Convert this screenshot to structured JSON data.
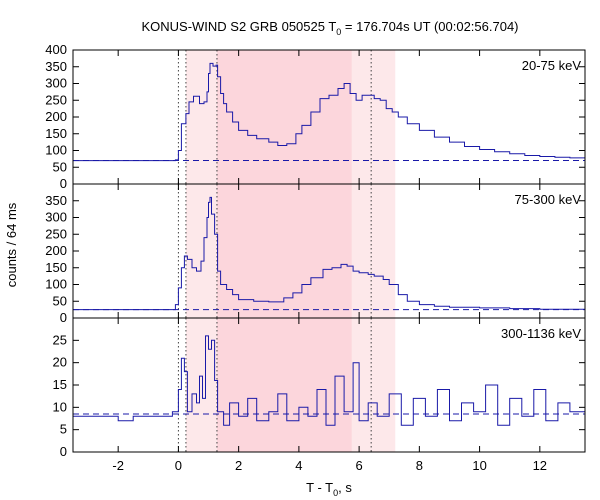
{
  "chart_data": {
    "type": "line",
    "title": {
      "main": "KONUS-WIND S2 GRB 050525 T",
      "sub": "0",
      "rest": " = 176.704s UT (00:02:56.704)"
    },
    "xlabel": {
      "main": "T - T",
      "sub": "0",
      "rest": ", s"
    },
    "ylabel": "counts / 64 ms",
    "xlim": [
      -3.5,
      13.5
    ],
    "x_ticks": [
      -2,
      0,
      2,
      4,
      6,
      8,
      10,
      12
    ],
    "vlines": [
      0.0,
      0.25,
      1.28,
      6.4
    ],
    "shaded": [
      {
        "range": [
          0.25,
          1.28
        ],
        "color": "#fde8ea"
      },
      {
        "range": [
          1.28,
          5.76
        ],
        "color": "#fcd6dc"
      },
      {
        "range": [
          5.76,
          7.2
        ],
        "color": "#fde8ea"
      }
    ],
    "panels": [
      {
        "band": "20-75 keV",
        "ylim": [
          0,
          400
        ],
        "y_ticks": [
          0,
          50,
          100,
          150,
          200,
          250,
          300,
          350,
          400
        ],
        "background": 70,
        "curve": [
          [
            -3.5,
            70
          ],
          [
            -0.4,
            70
          ],
          [
            -0.1,
            72
          ],
          [
            0.0,
            100
          ],
          [
            0.1,
            180
          ],
          [
            0.25,
            210
          ],
          [
            0.35,
            245
          ],
          [
            0.5,
            262
          ],
          [
            0.7,
            240
          ],
          [
            0.85,
            245
          ],
          [
            0.95,
            275
          ],
          [
            1.0,
            330
          ],
          [
            1.05,
            360
          ],
          [
            1.15,
            352
          ],
          [
            1.25,
            355
          ],
          [
            1.3,
            320
          ],
          [
            1.4,
            270
          ],
          [
            1.5,
            240
          ],
          [
            1.6,
            215
          ],
          [
            1.8,
            185
          ],
          [
            2.0,
            160
          ],
          [
            2.3,
            145
          ],
          [
            2.6,
            135
          ],
          [
            3.0,
            125
          ],
          [
            3.3,
            115
          ],
          [
            3.6,
            120
          ],
          [
            3.9,
            150
          ],
          [
            4.1,
            175
          ],
          [
            4.4,
            215
          ],
          [
            4.7,
            255
          ],
          [
            5.0,
            265
          ],
          [
            5.3,
            285
          ],
          [
            5.5,
            300
          ],
          [
            5.7,
            270
          ],
          [
            5.9,
            250
          ],
          [
            6.1,
            265
          ],
          [
            6.3,
            265
          ],
          [
            6.5,
            255
          ],
          [
            6.7,
            250
          ],
          [
            6.9,
            225
          ],
          [
            7.1,
            215
          ],
          [
            7.3,
            200
          ],
          [
            7.6,
            180
          ],
          [
            8.0,
            160
          ],
          [
            8.5,
            140
          ],
          [
            9.0,
            125
          ],
          [
            9.5,
            112
          ],
          [
            10.0,
            103
          ],
          [
            10.5,
            96
          ],
          [
            11.0,
            90
          ],
          [
            11.5,
            85
          ],
          [
            12.0,
            82
          ],
          [
            12.5,
            80
          ],
          [
            13.0,
            78
          ],
          [
            13.5,
            75
          ]
        ]
      },
      {
        "band": "75-300 keV",
        "ylim": [
          0,
          400
        ],
        "y_ticks": [
          0,
          50,
          100,
          150,
          200,
          250,
          300,
          350
        ],
        "background": 25,
        "curve": [
          [
            -3.5,
            25
          ],
          [
            -0.4,
            25
          ],
          [
            -0.1,
            40
          ],
          [
            0.0,
            90
          ],
          [
            0.1,
            150
          ],
          [
            0.2,
            185
          ],
          [
            0.3,
            175
          ],
          [
            0.45,
            150
          ],
          [
            0.6,
            140
          ],
          [
            0.75,
            170
          ],
          [
            0.85,
            240
          ],
          [
            0.95,
            300
          ],
          [
            1.0,
            345
          ],
          [
            1.05,
            360
          ],
          [
            1.1,
            310
          ],
          [
            1.2,
            250
          ],
          [
            1.3,
            140
          ],
          [
            1.4,
            100
          ],
          [
            1.6,
            85
          ],
          [
            1.8,
            70
          ],
          [
            2.0,
            55
          ],
          [
            2.5,
            50
          ],
          [
            3.0,
            48
          ],
          [
            3.5,
            60
          ],
          [
            3.8,
            75
          ],
          [
            4.1,
            100
          ],
          [
            4.4,
            120
          ],
          [
            4.8,
            145
          ],
          [
            5.1,
            150
          ],
          [
            5.4,
            160
          ],
          [
            5.6,
            155
          ],
          [
            5.8,
            140
          ],
          [
            6.0,
            135
          ],
          [
            6.3,
            130
          ],
          [
            6.5,
            125
          ],
          [
            6.8,
            115
          ],
          [
            7.0,
            100
          ],
          [
            7.3,
            70
          ],
          [
            7.6,
            50
          ],
          [
            8.0,
            40
          ],
          [
            8.5,
            35
          ],
          [
            9.0,
            32
          ],
          [
            10.0,
            30
          ],
          [
            11.0,
            28
          ],
          [
            12.0,
            26
          ],
          [
            13.5,
            25
          ]
        ]
      },
      {
        "band": "300-1136 keV",
        "ylim": [
          0,
          30
        ],
        "y_ticks": [
          0,
          5,
          10,
          15,
          20,
          25
        ],
        "background": 8.5,
        "curve": [
          [
            -3.5,
            8
          ],
          [
            -2.0,
            7
          ],
          [
            -1.5,
            8
          ],
          [
            -0.5,
            8
          ],
          [
            -0.2,
            9
          ],
          [
            0.0,
            14
          ],
          [
            0.1,
            21
          ],
          [
            0.2,
            18
          ],
          [
            0.3,
            9
          ],
          [
            0.45,
            13
          ],
          [
            0.6,
            11
          ],
          [
            0.7,
            17
          ],
          [
            0.8,
            12
          ],
          [
            0.9,
            26
          ],
          [
            1.0,
            23
          ],
          [
            1.1,
            25
          ],
          [
            1.2,
            16
          ],
          [
            1.3,
            9
          ],
          [
            1.5,
            6
          ],
          [
            1.7,
            11
          ],
          [
            2.0,
            8
          ],
          [
            2.3,
            12
          ],
          [
            2.6,
            7
          ],
          [
            3.0,
            9
          ],
          [
            3.3,
            13
          ],
          [
            3.6,
            7
          ],
          [
            4.0,
            10
          ],
          [
            4.3,
            8
          ],
          [
            4.6,
            14
          ],
          [
            4.9,
            6
          ],
          [
            5.2,
            17
          ],
          [
            5.5,
            9
          ],
          [
            5.8,
            20
          ],
          [
            6.0,
            7
          ],
          [
            6.3,
            11
          ],
          [
            6.6,
            8
          ],
          [
            7.0,
            13
          ],
          [
            7.4,
            6
          ],
          [
            7.8,
            12
          ],
          [
            8.2,
            8
          ],
          [
            8.6,
            14
          ],
          [
            9.0,
            7
          ],
          [
            9.4,
            11
          ],
          [
            9.8,
            9
          ],
          [
            10.2,
            15
          ],
          [
            10.6,
            6
          ],
          [
            11.0,
            12
          ],
          [
            11.4,
            8
          ],
          [
            11.8,
            14
          ],
          [
            12.2,
            7
          ],
          [
            12.6,
            11
          ],
          [
            13.0,
            9
          ],
          [
            13.5,
            10
          ]
        ]
      }
    ]
  }
}
